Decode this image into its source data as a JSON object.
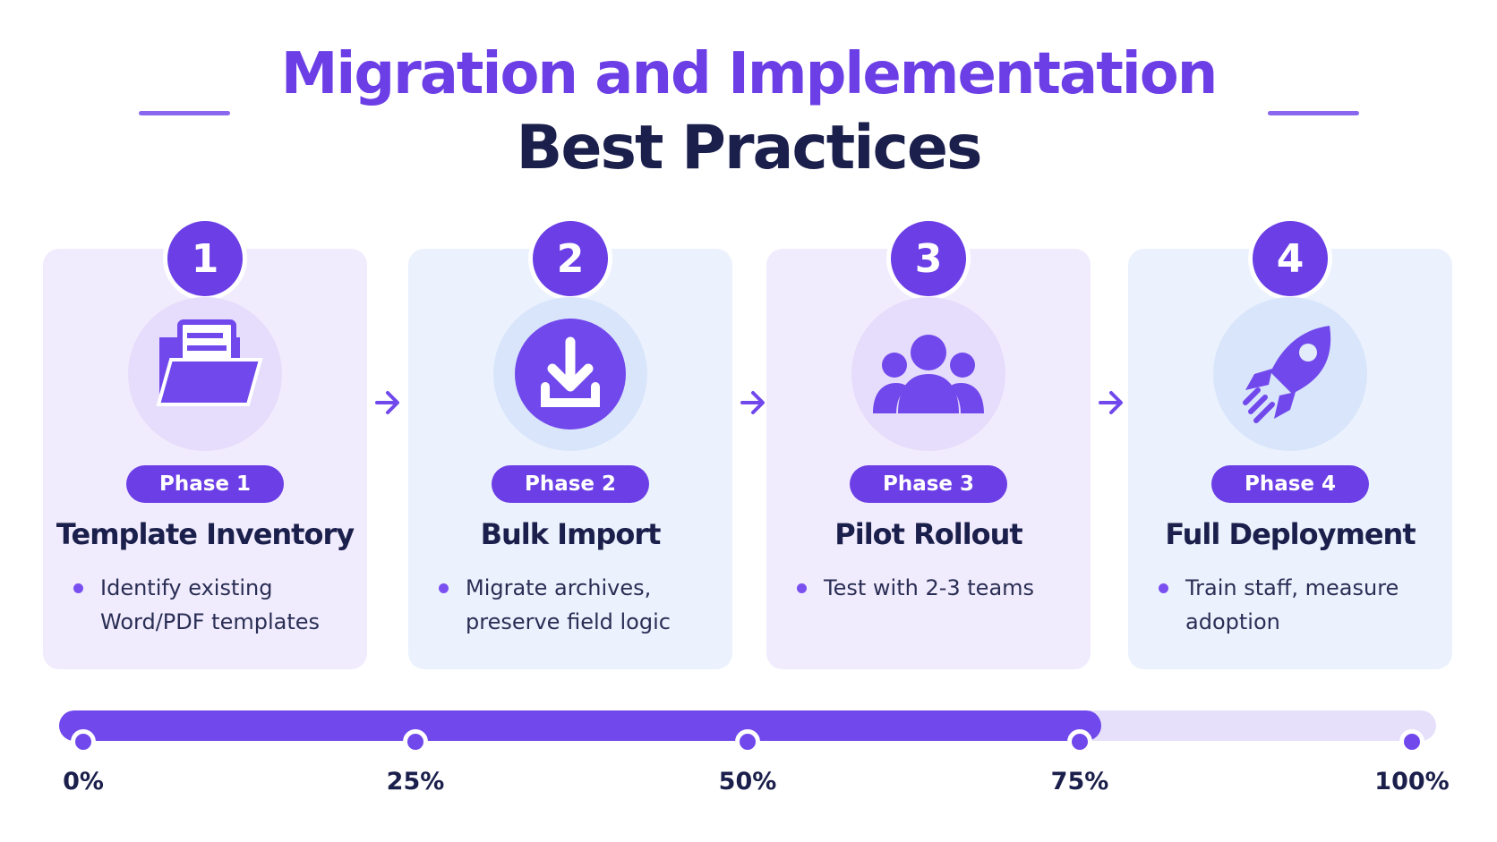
{
  "header": {
    "title_line1": "Migration and Implementation",
    "title_line2": "Best Practices"
  },
  "phases": [
    {
      "number": "1",
      "label": "Phase 1",
      "title": "Template Inventory",
      "bullet": "Identify existing Word/PDF templates"
    },
    {
      "number": "2",
      "label": "Phase 2",
      "title": "Bulk Import",
      "bullet": "Migrate archives, preserve field logic"
    },
    {
      "number": "3",
      "label": "Phase 3",
      "title": "Pilot Rollout",
      "bullet": "Test with 2-3 teams"
    },
    {
      "number": "4",
      "label": "Phase 4",
      "title": "Full Deployment",
      "bullet": "Train staff, measure adoption"
    }
  ],
  "progress": {
    "value": 75,
    "ticks": [
      {
        "value": 0,
        "label": "0%"
      },
      {
        "value": 25,
        "label": "25%"
      },
      {
        "value": 50,
        "label": "50%"
      },
      {
        "value": 75,
        "label": "75%"
      },
      {
        "value": 100,
        "label": "100%"
      }
    ]
  }
}
